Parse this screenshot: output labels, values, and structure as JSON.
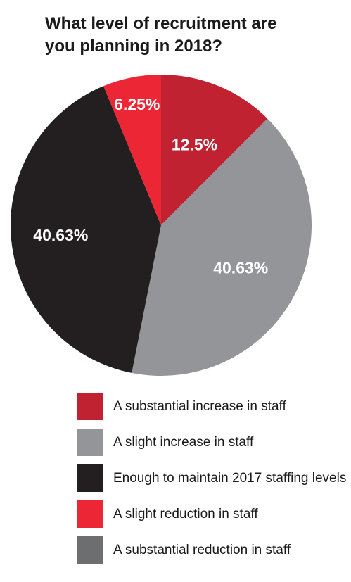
{
  "chart_data": {
    "type": "pie",
    "title_lines": [
      "What level of recruitment are",
      "you planning in 2018?"
    ],
    "slices": [
      {
        "name": "A substantial increase in staff",
        "value": 12.5,
        "label": "12.5%",
        "color": "#c02232"
      },
      {
        "name": "A slight increase in staff",
        "value": 40.63,
        "label": "40.63%",
        "color": "#939598"
      },
      {
        "name": "Enough to maintain 2017 staffing levels",
        "value": 40.63,
        "label": "40.63%",
        "color": "#231f20"
      },
      {
        "name": "A slight reduction in staff",
        "value": 6.25,
        "label": "6.25%",
        "color": "#ed2635"
      },
      {
        "name": "A substantial reduction in staff",
        "value": 0,
        "label": "",
        "color": "#6d6e70"
      }
    ],
    "legend_placement": "bottom"
  }
}
